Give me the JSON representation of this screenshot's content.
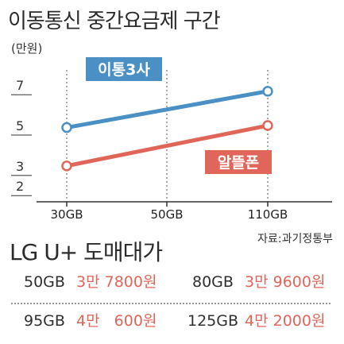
{
  "header": {
    "title": "이동통신 중간요금제 구간",
    "unit": "(만원)"
  },
  "source": "자료:과기정통부",
  "colors": {
    "telecom3": "#4a90c4",
    "mvno": "#e0665a",
    "axis": "#333333",
    "grid": "#555555"
  },
  "chart_data": {
    "type": "line",
    "categories": [
      "30GB",
      "50GB",
      "110GB"
    ],
    "x": [
      30,
      50,
      110
    ],
    "y_ticks": [
      "7",
      "5",
      "3",
      "2"
    ],
    "y_tick_values": [
      7,
      5,
      3,
      2
    ],
    "series": [
      {
        "name": "이통3사",
        "values": [
          4.9,
          null,
          6.7
        ]
      },
      {
        "name": "알뜰폰",
        "values": [
          3.0,
          null,
          5.0
        ]
      }
    ]
  },
  "wholesale": {
    "title": "LG U+ 도매대가",
    "rows": [
      [
        {
          "gb": "50GB",
          "price": "3만 7800원"
        },
        {
          "gb": "80GB",
          "price": "3만 9600원"
        }
      ],
      [
        {
          "gb": "95GB",
          "price": "4만   600원"
        },
        {
          "gb": "125GB",
          "price": "4만 2000원"
        }
      ]
    ]
  }
}
